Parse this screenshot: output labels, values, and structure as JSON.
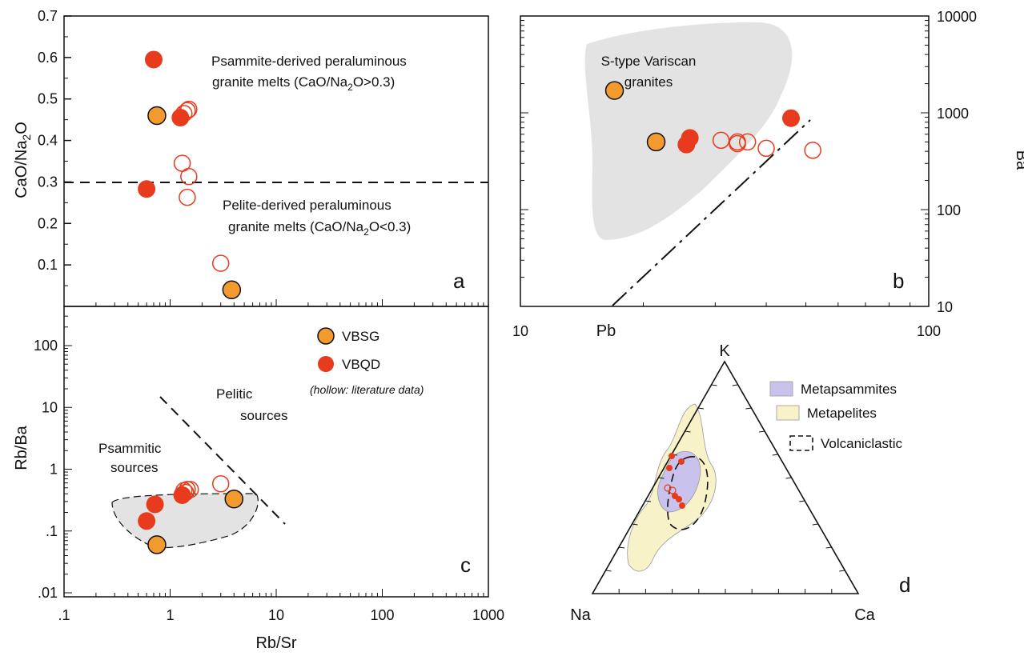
{
  "colors": {
    "vbsg": "#f39a2e",
    "vbqd": "#e83a1c",
    "hollow": "#e83a1c",
    "field_gray": "#e3e3e3",
    "metapsammite": "#c9c2ec",
    "metapelite": "#f7f2c8"
  },
  "chart_data": [
    {
      "panel": "a",
      "type": "scatter",
      "x_scale": "log",
      "y_scale": "linear",
      "xlim": [
        0.1,
        1000
      ],
      "ylim": [
        0,
        0.7
      ],
      "ylabel_parts": [
        "CaO/Na",
        "2",
        "O"
      ],
      "panel_label": "a",
      "y_ticks": [
        "0.1",
        "0.2",
        "0.3",
        "0.4",
        "0.5",
        "0.6",
        "0.7"
      ],
      "threshold_y": 0.3,
      "annotations": {
        "upper_line1": "Psammite-derived peraluminous",
        "upper_line2_parts": [
          "granite melts (CaO/Na",
          "2",
          "O>0.3)"
        ],
        "lower_line1": "Pelite-derived peraluminous",
        "lower_line2_parts": [
          "granite melts (CaO/Na",
          "2",
          "O<0.3)"
        ]
      },
      "series": [
        {
          "name": "VBSG",
          "style": "filled",
          "points": [
            [
              0.75,
              0.46
            ],
            [
              3.8,
              0.04
            ]
          ]
        },
        {
          "name": "VBQD",
          "style": "filled",
          "points": [
            [
              0.7,
              0.595
            ],
            [
              1.25,
              0.455
            ],
            [
              0.6,
              0.283
            ]
          ]
        },
        {
          "name": "hollow",
          "style": "hollow",
          "points": [
            [
              1.35,
              0.465
            ],
            [
              1.45,
              0.472
            ],
            [
              1.5,
              0.475
            ],
            [
              1.3,
              0.345
            ],
            [
              1.5,
              0.313
            ],
            [
              1.45,
              0.263
            ],
            [
              3.0,
              0.104
            ]
          ]
        }
      ]
    },
    {
      "panel": "b",
      "type": "scatter",
      "x_scale": "log",
      "y_scale": "log",
      "xlim": [
        10,
        100
      ],
      "ylim": [
        10,
        10000
      ],
      "xlabel": "Pb",
      "ylabel": "Ba",
      "x_tick_labels": [
        "10",
        "100"
      ],
      "y_tick_labels": [
        "10",
        "100",
        "1000",
        "10000"
      ],
      "panel_label": "b",
      "field_label_line1": "S-type Variscan",
      "field_label_line2": "granites",
      "series": [
        {
          "name": "VBSG",
          "style": "filled",
          "points": [
            [
              17.0,
              1700
            ],
            [
              21.5,
              500
            ]
          ]
        },
        {
          "name": "VBQD",
          "style": "filled",
          "points": [
            [
              26.0,
              550
            ],
            [
              25.5,
              470
            ],
            [
              46.0,
              880
            ]
          ]
        },
        {
          "name": "hollow",
          "style": "hollow",
          "points": [
            [
              31.0,
              520
            ],
            [
              34.0,
              500
            ],
            [
              34.0,
              480
            ],
            [
              36.0,
              500
            ],
            [
              40.0,
              430
            ],
            [
              52.0,
              410
            ]
          ]
        }
      ]
    },
    {
      "panel": "c",
      "type": "scatter",
      "x_scale": "log",
      "y_scale": "log",
      "xlim": [
        0.1,
        1000
      ],
      "ylim": [
        0.01,
        300
      ],
      "xlabel": "Rb/Sr",
      "ylabel": "Rb/Ba",
      "x_tick_labels": [
        ".1",
        "1",
        "10",
        "100",
        "1000"
      ],
      "y_tick_labels": [
        ".01",
        ".1",
        "1",
        "10",
        "100"
      ],
      "panel_label": "c",
      "annotations": {
        "pelitic_line1": "Pelitic",
        "pelitic_line2": "sources",
        "psammitic_line1": "Psammitic",
        "psammitic_line2": "sources"
      },
      "legend": {
        "vbsg": "VBSG",
        "vbqd": "VBQD",
        "note": "(hollow: literature data)"
      },
      "series": [
        {
          "name": "VBSG",
          "style": "filled",
          "points": [
            [
              0.75,
              0.06
            ],
            [
              4.0,
              0.33
            ]
          ]
        },
        {
          "name": "VBQD",
          "style": "filled",
          "points": [
            [
              0.72,
              0.27
            ],
            [
              0.6,
              0.145
            ],
            [
              1.3,
              0.38
            ]
          ]
        },
        {
          "name": "hollow",
          "style": "hollow",
          "points": [
            [
              1.35,
              0.45
            ],
            [
              1.45,
              0.47
            ],
            [
              1.55,
              0.47
            ],
            [
              1.4,
              0.42
            ],
            [
              3.0,
              0.58
            ]
          ]
        }
      ]
    },
    {
      "panel": "d",
      "type": "ternary",
      "vertex_labels": {
        "top": "K",
        "left": "Na",
        "right": "Ca"
      },
      "panel_label": "d",
      "legend": {
        "metapsammites": "Metapsammites",
        "metapelites": "Metapelites",
        "volcaniclastic": "Volcaniclastic"
      }
    }
  ]
}
